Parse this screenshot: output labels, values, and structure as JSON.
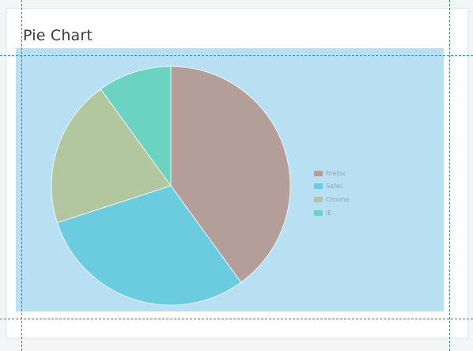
{
  "card": {
    "title": "Pie Chart"
  },
  "colors": {
    "plot_background": "#b8e0f2",
    "guide_lines": "#2a86a6"
  },
  "chart_data": {
    "type": "pie",
    "title": "Pie Chart",
    "categories": [
      "Firefox",
      "Safari",
      "Chrome",
      "IE"
    ],
    "values": [
      40,
      30,
      20,
      10
    ],
    "colors": [
      "#b49e99",
      "#6bcce0",
      "#b2c6a0",
      "#6cd3c1"
    ],
    "legend": {
      "placement": "right",
      "entries": [
        "Firefox",
        "Safari",
        "Chrome",
        "IE"
      ]
    }
  }
}
